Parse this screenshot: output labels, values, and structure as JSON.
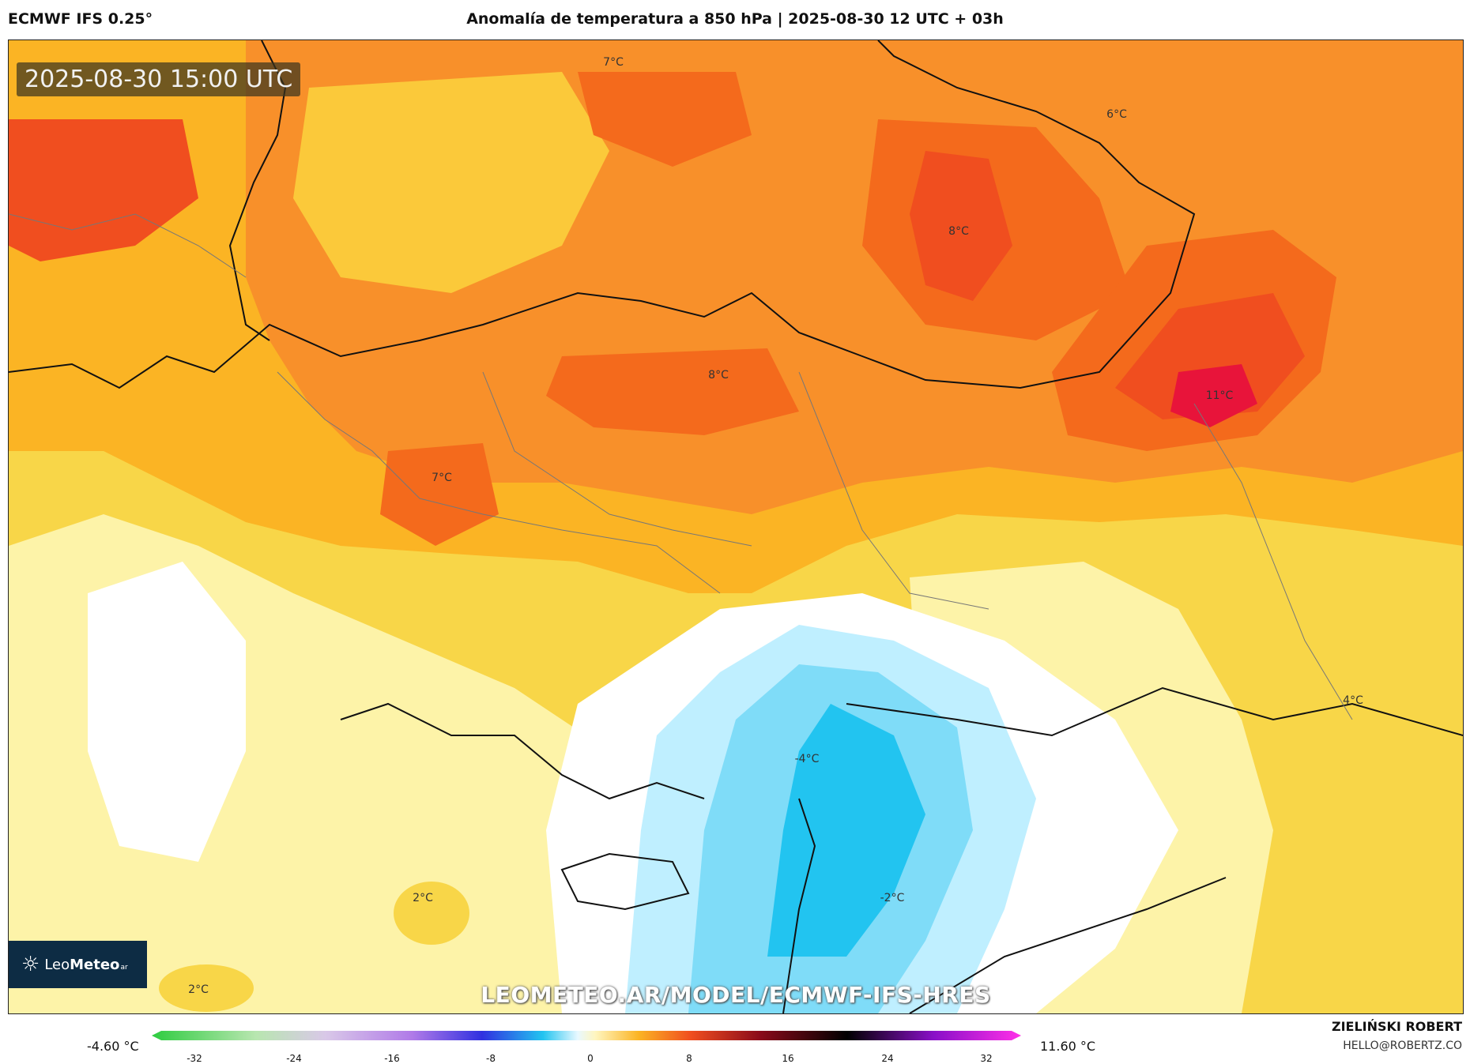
{
  "header": {
    "model": "ECMWF IFS 0.25°",
    "title": "Anomalía de temperatura a 850 hPa | 2025-08-30 12 UTC + 03h"
  },
  "map": {
    "valid_time": "2025-08-30 15:00 UTC",
    "website": "LEOMETEO.AR/MODEL/ECMWF-IFS-HRES",
    "logo": {
      "name_plain": "Leo",
      "name_bold": "Meteo",
      "suffix": "ar"
    },
    "labels": [
      "7°C",
      "6°C",
      "8°C",
      "8°C",
      "11°C",
      "7°C",
      "4°C",
      "-4°C",
      "2°C",
      "-2°C",
      "2°C"
    ],
    "fill_colors": {
      "deep_red": "#e8143a",
      "red": "#f04e1f",
      "orange_red": "#f46a1c",
      "orange": "#f8902a",
      "amber": "#fbb424",
      "yellow": "#f8d648",
      "pale_yellow": "#fdf3a8",
      "white": "#ffffff",
      "pale_blue": "#bfefff",
      "light_blue": "#7fdcf8",
      "blue": "#22c4f0"
    }
  },
  "legend": {
    "min_label": "-4.60 °C",
    "max_label": "11.60 °C",
    "ticks": [
      "-32",
      "-24",
      "-16",
      "-8",
      "0",
      "8",
      "16",
      "24",
      "32"
    ]
  },
  "credits": {
    "author": "ZIELIŃSKI ROBERT",
    "email": "HELLO@ROBERTZ.CO"
  }
}
